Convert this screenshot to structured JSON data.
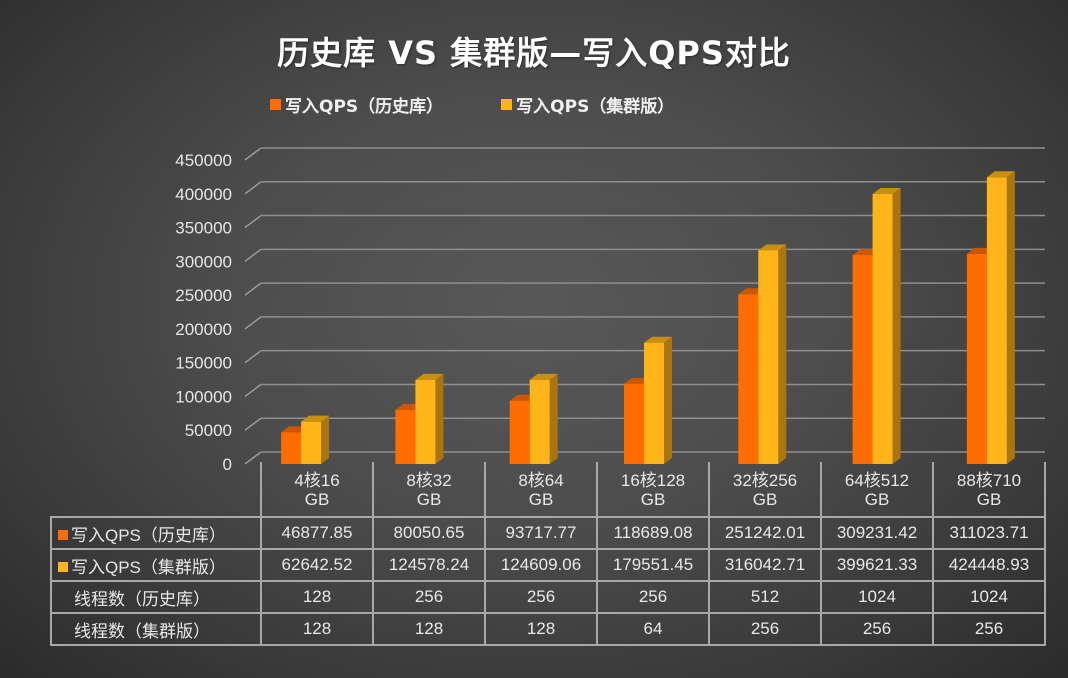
{
  "chart_data": {
    "type": "bar",
    "style": "3d-clustered-column-with-data-table",
    "title": "历史库 VS 集群版—写入QPS对比",
    "xlabel": "",
    "ylabel": "",
    "ylim": [
      0,
      450000
    ],
    "yticks": [
      0,
      50000,
      100000,
      150000,
      200000,
      250000,
      300000,
      350000,
      400000,
      450000
    ],
    "ytick_labels": [
      "0",
      "50000",
      "100000",
      "150000",
      "200000",
      "250000",
      "300000",
      "350000",
      "400000",
      "450000"
    ],
    "grid": true,
    "legend_position": "top",
    "categories": [
      [
        "4核16",
        "GB"
      ],
      [
        "8核32",
        "GB"
      ],
      [
        "8核64",
        "GB"
      ],
      [
        "16核128",
        "GB"
      ],
      [
        "32核256",
        "GB"
      ],
      [
        "64核512",
        "GB"
      ],
      [
        "88核710",
        "GB"
      ]
    ],
    "series": [
      {
        "name": "写入QPS（历史库）",
        "color": "#ff6d00",
        "top_color": "#cc5700",
        "side_color": "#b34d00",
        "values": [
          46877.85,
          80050.65,
          93717.77,
          118689.08,
          251242.01,
          309231.42,
          311023.71
        ],
        "value_labels": [
          "46877.85",
          "80050.65",
          "93717.77",
          "118689.08",
          "251242.01",
          "309231.42",
          "311023.71"
        ]
      },
      {
        "name": "写入QPS（集群版）",
        "color": "#ffb519",
        "top_color": "#c9900f",
        "side_color": "#a87510",
        "values": [
          62642.52,
          124578.24,
          124609.06,
          179551.45,
          316042.71,
          399621.33,
          424448.93
        ],
        "value_labels": [
          "62642.52",
          "124578.24",
          "124609.06",
          "179551.45",
          "316042.71",
          "399621.33",
          "424448.93"
        ]
      }
    ],
    "table_extra_rows": [
      {
        "name": "线程数（历史库）",
        "values": [
          "128",
          "256",
          "256",
          "256",
          "512",
          "1024",
          "1024"
        ]
      },
      {
        "name": "线程数（集群版）",
        "values": [
          "128",
          "128",
          "128",
          "64",
          "256",
          "256",
          "256"
        ]
      }
    ]
  }
}
